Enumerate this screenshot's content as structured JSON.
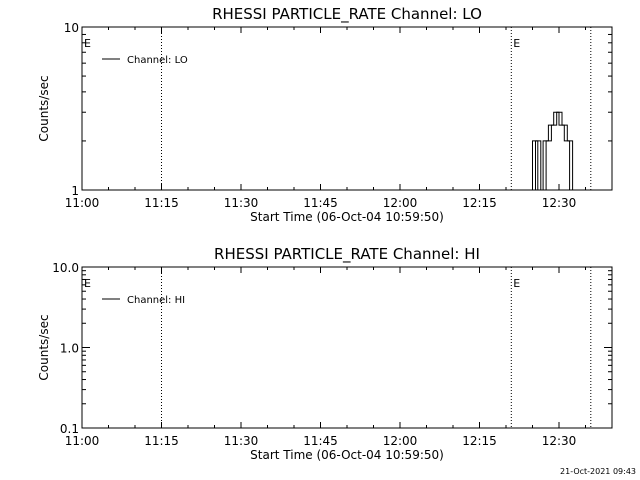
{
  "chart_data": [
    {
      "type": "line",
      "title": "RHESSI PARTICLE_RATE Channel: LO",
      "xlabel": "Start Time (06-Oct-04 10:59:50)",
      "ylabel": "Counts/sec",
      "x_ticks": [
        "11:00",
        "11:15",
        "11:30",
        "11:45",
        "12:00",
        "12:15",
        "12:30"
      ],
      "xlim": [
        "11:00",
        "12:40"
      ],
      "y_scale": "log",
      "ylim": [
        1,
        10
      ],
      "y_ticks": [
        "10",
        "1"
      ],
      "legend": {
        "entries": [
          "Channel: LO"
        ],
        "position": "top-left"
      },
      "markers": [
        {
          "label": "E",
          "time": "11:00"
        },
        {
          "label": "E",
          "time": "12:21"
        }
      ],
      "vlines": [
        "11:15",
        "12:21",
        "12:36"
      ],
      "series": [
        {
          "name": "Channel: LO",
          "x": [
            "12:24",
            "12:25",
            "12:25",
            "12:26",
            "12:26",
            "12:27",
            "12:27",
            "12:28",
            "12:28",
            "12:29",
            "12:29",
            "12:30",
            "12:30",
            "12:31",
            "12:31",
            "12:32",
            "12:32"
          ],
          "y": [
            1,
            1,
            2,
            2,
            1,
            1,
            2,
            2,
            2.5,
            2.5,
            3,
            3,
            2.5,
            2.5,
            2,
            2,
            1
          ]
        }
      ]
    },
    {
      "type": "line",
      "title": "RHESSI PARTICLE_RATE Channel: HI",
      "xlabel": "Start Time (06-Oct-04 10:59:50)",
      "ylabel": "Counts/sec",
      "x_ticks": [
        "11:00",
        "11:15",
        "11:30",
        "11:45",
        "12:00",
        "12:15",
        "12:30"
      ],
      "xlim": [
        "11:00",
        "12:40"
      ],
      "y_scale": "log",
      "ylim": [
        0.1,
        10
      ],
      "y_ticks": [
        "10.0",
        "1.0",
        "0.1"
      ],
      "legend": {
        "entries": [
          "Channel: HI"
        ],
        "position": "top-left"
      },
      "markers": [
        {
          "label": "E",
          "time": "11:00"
        },
        {
          "label": "E",
          "time": "12:21"
        }
      ],
      "vlines": [
        "11:15",
        "12:21",
        "12:36"
      ],
      "series": [
        {
          "name": "Channel: HI",
          "x": [],
          "y": []
        }
      ]
    }
  ],
  "footer": {
    "timestamp": "21-Oct-2021 09:43"
  }
}
